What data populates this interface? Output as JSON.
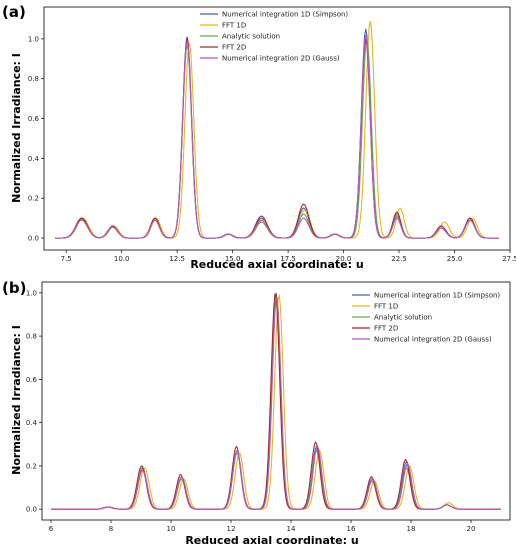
{
  "chart_data": [
    {
      "type": "line",
      "panel_label": "(a)",
      "xlabel": "Reduced axial coordinate: u",
      "ylabel": "Normalized Irradiance: I",
      "xlim": [
        6.5,
        27.5
      ],
      "ylim": [
        -0.06,
        1.16
      ],
      "xticks": [
        7.5,
        10.0,
        12.5,
        15.0,
        17.5,
        20.0,
        22.5,
        25.0,
        27.5
      ],
      "xtick_labels": [
        "7.5",
        "10.0",
        "12.5",
        "15.0",
        "17.5",
        "20.0",
        "22.5",
        "25.0",
        "27.5"
      ],
      "yticks": [
        0.0,
        0.2,
        0.4,
        0.6,
        0.8,
        1.0
      ],
      "ytick_labels": [
        "0.0",
        "0.2",
        "0.4",
        "0.6",
        "0.8",
        "1.0"
      ],
      "legend_position": "top-center",
      "grid": false,
      "series": [
        {
          "name": "Numerical integration 1D (Simpson)",
          "color": "#4a5ec4",
          "peaks": [
            [
              8.2,
              0.1,
              0.55
            ],
            [
              9.6,
              0.06,
              0.45
            ],
            [
              11.5,
              0.1,
              0.42
            ],
            [
              12.95,
              1.0,
              0.42
            ],
            [
              14.8,
              0.02,
              0.4
            ],
            [
              16.3,
              0.1,
              0.55
            ],
            [
              18.2,
              0.15,
              0.5
            ],
            [
              19.6,
              0.02,
              0.4
            ],
            [
              21.0,
              1.05,
              0.42
            ],
            [
              22.4,
              0.12,
              0.38
            ],
            [
              24.4,
              0.06,
              0.45
            ],
            [
              25.7,
              0.1,
              0.45
            ]
          ],
          "x_range": [
            7.0,
            27.0
          ]
        },
        {
          "name": "FFT 1D",
          "color": "#e8b51e",
          "peaks": [
            [
              8.25,
              0.1,
              0.55
            ],
            [
              9.65,
              0.06,
              0.45
            ],
            [
              11.55,
              0.1,
              0.42
            ],
            [
              13.05,
              0.98,
              0.42
            ],
            [
              14.85,
              0.02,
              0.4
            ],
            [
              16.35,
              0.09,
              0.55
            ],
            [
              18.25,
              0.14,
              0.5
            ],
            [
              19.65,
              0.02,
              0.4
            ],
            [
              21.2,
              1.09,
              0.42
            ],
            [
              22.55,
              0.15,
              0.38
            ],
            [
              24.55,
              0.08,
              0.45
            ],
            [
              25.8,
              0.1,
              0.45
            ]
          ],
          "x_range": [
            7.0,
            27.0
          ]
        },
        {
          "name": "Analytic solution",
          "color": "#6aa84f",
          "peaks": [
            [
              8.2,
              0.095,
              0.55
            ],
            [
              9.6,
              0.055,
              0.45
            ],
            [
              11.5,
              0.09,
              0.42
            ],
            [
              12.95,
              0.97,
              0.42
            ],
            [
              14.8,
              0.02,
              0.4
            ],
            [
              16.3,
              0.08,
              0.55
            ],
            [
              18.2,
              0.12,
              0.5
            ],
            [
              19.6,
              0.02,
              0.4
            ],
            [
              21.05,
              1.0,
              0.42
            ],
            [
              22.4,
              0.11,
              0.38
            ],
            [
              24.4,
              0.05,
              0.45
            ],
            [
              25.7,
              0.09,
              0.45
            ]
          ],
          "x_range": [
            7.0,
            27.0
          ]
        },
        {
          "name": "FFT 2D",
          "color": "#a52a2a",
          "peaks": [
            [
              8.2,
              0.1,
              0.55
            ],
            [
              9.6,
              0.06,
              0.45
            ],
            [
              11.5,
              0.1,
              0.42
            ],
            [
              12.95,
              1.01,
              0.42
            ],
            [
              14.8,
              0.02,
              0.4
            ],
            [
              16.3,
              0.11,
              0.55
            ],
            [
              18.2,
              0.17,
              0.5
            ],
            [
              19.6,
              0.02,
              0.4
            ],
            [
              21.0,
              1.0,
              0.42
            ],
            [
              22.4,
              0.13,
              0.38
            ],
            [
              24.4,
              0.06,
              0.45
            ],
            [
              25.7,
              0.1,
              0.45
            ]
          ],
          "x_range": [
            7.0,
            27.0
          ]
        },
        {
          "name": "Numerical integration 2D (Gauss)",
          "color": "#b05cc8",
          "peaks": [
            [
              8.2,
              0.09,
              0.55
            ],
            [
              9.6,
              0.055,
              0.45
            ],
            [
              11.5,
              0.09,
              0.42
            ],
            [
              12.95,
              0.99,
              0.42
            ],
            [
              14.8,
              0.02,
              0.4
            ],
            [
              16.3,
              0.09,
              0.55
            ],
            [
              18.2,
              0.1,
              0.5
            ],
            [
              19.6,
              0.02,
              0.4
            ],
            [
              21.0,
              1.02,
              0.42
            ],
            [
              22.4,
              0.1,
              0.38
            ],
            [
              24.4,
              0.05,
              0.45
            ],
            [
              25.7,
              0.09,
              0.45
            ]
          ],
          "x_range": [
            7.0,
            27.0
          ]
        }
      ]
    },
    {
      "type": "line",
      "panel_label": "(b)",
      "xlabel": "Reduced axial coordinate: u",
      "ylabel": "Normalized Irradiance: I",
      "xlim": [
        5.7,
        21.3
      ],
      "ylim": [
        -0.05,
        1.05
      ],
      "xticks": [
        6,
        8,
        10,
        12,
        14,
        16,
        18,
        20
      ],
      "xtick_labels": [
        "6",
        "8",
        "10",
        "12",
        "14",
        "16",
        "18",
        "20"
      ],
      "yticks": [
        0.0,
        0.2,
        0.4,
        0.6,
        0.8,
        1.0
      ],
      "ytick_labels": [
        "0.0",
        "0.2",
        "0.4",
        "0.6",
        "0.8",
        "1.0"
      ],
      "legend_position": "top-right",
      "grid": false,
      "series": [
        {
          "name": "Numerical integration 1D (Simpson)",
          "color": "#4a5ec4",
          "peaks": [
            [
              7.9,
              0.01,
              0.3
            ],
            [
              9.05,
              0.19,
              0.32
            ],
            [
              10.35,
              0.15,
              0.3
            ],
            [
              12.2,
              0.27,
              0.3
            ],
            [
              13.5,
              1.0,
              0.3
            ],
            [
              14.85,
              0.29,
              0.3
            ],
            [
              16.7,
              0.14,
              0.3
            ],
            [
              17.85,
              0.22,
              0.3
            ],
            [
              19.2,
              0.02,
              0.3
            ]
          ],
          "x_range": [
            6.0,
            21.0
          ]
        },
        {
          "name": "FFT 1D",
          "color": "#e8b51e",
          "peaks": [
            [
              7.95,
              0.01,
              0.3
            ],
            [
              9.12,
              0.19,
              0.32
            ],
            [
              10.42,
              0.14,
              0.3
            ],
            [
              12.28,
              0.26,
              0.3
            ],
            [
              13.6,
              0.99,
              0.3
            ],
            [
              14.95,
              0.27,
              0.3
            ],
            [
              16.78,
              0.13,
              0.3
            ],
            [
              17.95,
              0.2,
              0.3
            ],
            [
              19.25,
              0.03,
              0.3
            ]
          ],
          "x_range": [
            6.0,
            21.0
          ]
        },
        {
          "name": "Analytic solution",
          "color": "#6aa84f",
          "peaks": [
            [
              7.9,
              0.01,
              0.3
            ],
            [
              9.05,
              0.18,
              0.32
            ],
            [
              10.35,
              0.14,
              0.3
            ],
            [
              12.2,
              0.26,
              0.3
            ],
            [
              13.5,
              0.99,
              0.3
            ],
            [
              14.85,
              0.27,
              0.3
            ],
            [
              16.7,
              0.13,
              0.3
            ],
            [
              17.85,
              0.19,
              0.3
            ],
            [
              19.2,
              0.02,
              0.3
            ]
          ],
          "x_range": [
            6.0,
            21.0
          ]
        },
        {
          "name": "FFT 2D",
          "color": "#a52a2a",
          "peaks": [
            [
              7.9,
              0.01,
              0.3
            ],
            [
              9.02,
              0.2,
              0.32
            ],
            [
              10.32,
              0.16,
              0.3
            ],
            [
              12.18,
              0.29,
              0.3
            ],
            [
              13.48,
              1.0,
              0.3
            ],
            [
              14.82,
              0.31,
              0.3
            ],
            [
              16.68,
              0.15,
              0.3
            ],
            [
              17.82,
              0.23,
              0.3
            ],
            [
              19.2,
              0.02,
              0.3
            ]
          ],
          "x_range": [
            6.0,
            21.0
          ]
        },
        {
          "name": "Numerical integration 2D (Gauss)",
          "color": "#b05cc8",
          "peaks": [
            [
              7.9,
              0.01,
              0.3
            ],
            [
              9.05,
              0.18,
              0.32
            ],
            [
              10.35,
              0.15,
              0.3
            ],
            [
              12.2,
              0.27,
              0.3
            ],
            [
              13.52,
              0.98,
              0.3
            ],
            [
              14.88,
              0.29,
              0.3
            ],
            [
              16.72,
              0.14,
              0.3
            ],
            [
              17.88,
              0.21,
              0.3
            ],
            [
              19.2,
              0.02,
              0.3
            ]
          ],
          "x_range": [
            6.0,
            21.0
          ]
        }
      ]
    }
  ]
}
